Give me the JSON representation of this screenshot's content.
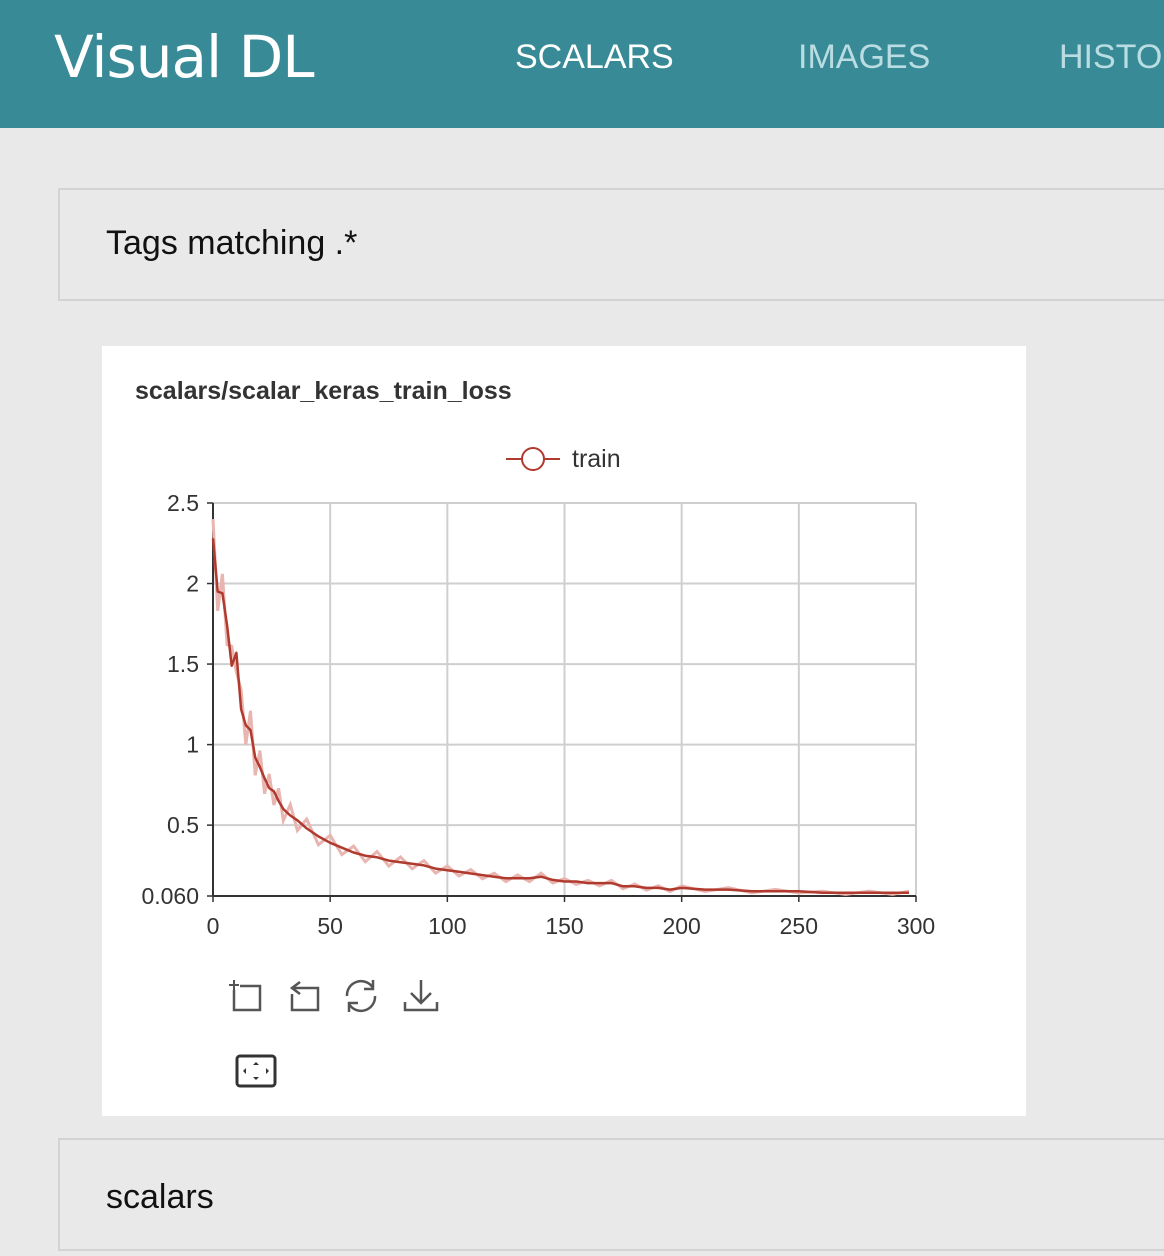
{
  "app": {
    "logo_text": "Visual DL"
  },
  "nav": {
    "tabs": [
      {
        "label": "SCALARS",
        "active": true
      },
      {
        "label": "IMAGES",
        "active": false
      },
      {
        "label": "HISTOGRAMS",
        "active": false
      }
    ]
  },
  "filter_section": {
    "title": "Tags matching .*"
  },
  "chart_card": {
    "title": "scalars/scalar_keras_train_loss",
    "toolbar": {
      "icons": [
        "zoom-select-icon",
        "zoom-reset-icon",
        "refresh-icon",
        "download-icon",
        "fit-screen-icon"
      ]
    }
  },
  "group_section": {
    "title": "scalars"
  },
  "colors": {
    "header": "#388b96",
    "series": "#b03a2e",
    "series_raw": "#e8b5b0"
  },
  "chart_data": {
    "type": "line",
    "title": "scalars/scalar_keras_train_loss",
    "xlabel": "",
    "ylabel": "",
    "xlim": [
      0,
      300
    ],
    "ylim": [
      0.06,
      2.5
    ],
    "x_ticks": [
      0,
      50,
      100,
      150,
      200,
      250,
      300
    ],
    "y_ticks": [
      0.06,
      0.5,
      1,
      1.5,
      2,
      2.5
    ],
    "y_tick_labels": [
      "0.060",
      "0.5",
      "1",
      "1.5",
      "2",
      "2.5"
    ],
    "grid": true,
    "legend": {
      "position": "top-center",
      "entries": [
        "train"
      ]
    },
    "series": [
      {
        "name": "train",
        "x": [
          0,
          2,
          4,
          6,
          8,
          10,
          12,
          14,
          16,
          18,
          20,
          22,
          24,
          26,
          28,
          30,
          33,
          36,
          40,
          45,
          50,
          55,
          60,
          65,
          70,
          75,
          80,
          85,
          90,
          95,
          100,
          105,
          110,
          115,
          120,
          125,
          130,
          135,
          140,
          145,
          150,
          155,
          160,
          165,
          170,
          175,
          180,
          185,
          190,
          195,
          200,
          210,
          220,
          230,
          240,
          250,
          260,
          270,
          280,
          290,
          297
        ],
        "values": [
          2.28,
          1.95,
          1.94,
          1.74,
          1.49,
          1.57,
          1.22,
          1.12,
          1.09,
          0.92,
          0.86,
          0.79,
          0.73,
          0.71,
          0.65,
          0.6,
          0.56,
          0.53,
          0.48,
          0.43,
          0.39,
          0.36,
          0.33,
          0.31,
          0.3,
          0.28,
          0.27,
          0.26,
          0.25,
          0.23,
          0.22,
          0.21,
          0.2,
          0.19,
          0.18,
          0.17,
          0.17,
          0.17,
          0.18,
          0.16,
          0.15,
          0.15,
          0.14,
          0.14,
          0.14,
          0.12,
          0.12,
          0.11,
          0.11,
          0.1,
          0.11,
          0.1,
          0.1,
          0.09,
          0.09,
          0.09,
          0.08,
          0.08,
          0.08,
          0.08,
          0.08
        ]
      }
    ]
  }
}
